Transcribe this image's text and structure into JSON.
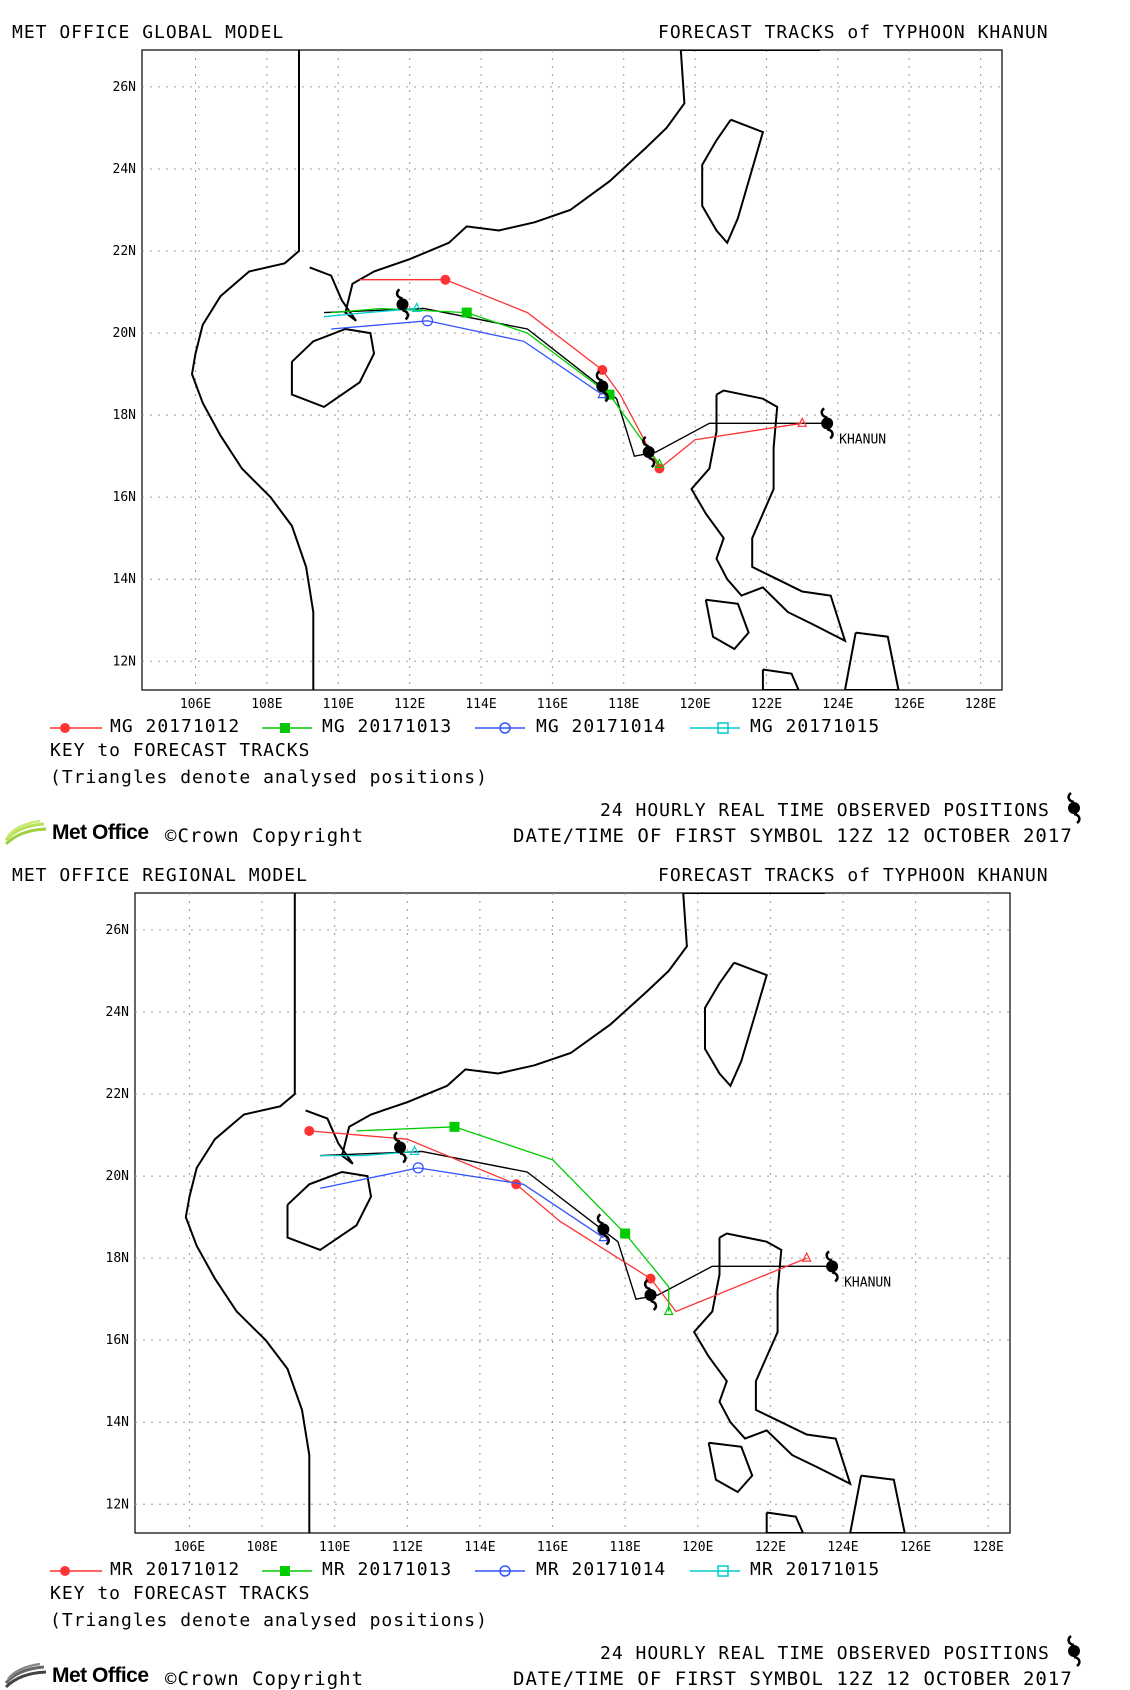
{
  "panels": [
    {
      "model_title": "MET OFFICE GLOBAL MODEL",
      "forecast_title": "FORECAST TRACKS of TYPHOON KHANUN",
      "storm_label": "KHANUN",
      "legend": [
        {
          "label": "MG 20171012",
          "color": "#ff3333",
          "marker": "filled-circle"
        },
        {
          "label": "MG 20171013",
          "color": "#00cc00",
          "marker": "filled-square"
        },
        {
          "label": "MG 20171014",
          "color": "#3355ff",
          "marker": "open-circle"
        },
        {
          "label": "MG 20171015",
          "color": "#00cccc",
          "marker": "open-square"
        }
      ],
      "key_title": "KEY to FORECAST TRACKS",
      "key_note": "(Triangles denote analysed positions)",
      "observed_label": "24 HOURLY REAL TIME OBSERVED POSITIONS",
      "first_symbol_label": "DATE/TIME OF FIRST SYMBOL 12Z 12 OCTOBER 2017",
      "logo_text": "Met Office",
      "copyright": "©Crown Copyright"
    },
    {
      "model_title": "MET OFFICE REGIONAL MODEL",
      "forecast_title": "FORECAST TRACKS of TYPHOON KHANUN",
      "storm_label": "KHANUN",
      "legend": [
        {
          "label": "MR 20171012",
          "color": "#ff3333",
          "marker": "filled-circle"
        },
        {
          "label": "MR 20171013",
          "color": "#00cc00",
          "marker": "filled-square"
        },
        {
          "label": "MR 20171014",
          "color": "#3355ff",
          "marker": "open-circle"
        },
        {
          "label": "MR 20171015",
          "color": "#00cccc",
          "marker": "open-square"
        }
      ],
      "key_title": "KEY to FORECAST TRACKS",
      "key_note": "(Triangles denote analysed positions)",
      "observed_label": "24 HOURLY REAL TIME OBSERVED POSITIONS",
      "first_symbol_label": "DATE/TIME OF FIRST SYMBOL 12Z 12 OCTOBER 2017",
      "logo_text": "Met Office",
      "copyright": "©Crown Copyright"
    }
  ],
  "map_axes": {
    "lon_ticks": [
      "106E",
      "108E",
      "110E",
      "112E",
      "114E",
      "116E",
      "118E",
      "120E",
      "122E",
      "124E",
      "126E",
      "128E"
    ],
    "lat_ticks": [
      "26N",
      "24N",
      "22N",
      "20N",
      "18N",
      "16N",
      "14N",
      "12N"
    ],
    "lon_range": [
      104.5,
      128.6
    ],
    "lat_range": [
      11.3,
      26.9
    ],
    "grid": "dotted"
  },
  "tracks": {
    "global": {
      "observed": [
        [
          123.7,
          17.8
        ],
        [
          118.7,
          17.1
        ],
        [
          117.4,
          18.7
        ],
        [
          111.8,
          20.7
        ]
      ],
      "best_track": [
        [
          123.7,
          17.8
        ],
        [
          120.4,
          17.8
        ],
        [
          118.9,
          17.1
        ],
        [
          118.3,
          17.0
        ],
        [
          117.8,
          18.4
        ],
        [
          115.3,
          20.1
        ],
        [
          112.4,
          20.6
        ],
        [
          109.6,
          20.5
        ]
      ],
      "forecasts": [
        {
          "name": "MG 20171012",
          "color": "#ff3333",
          "points": [
            [
              123.0,
              17.8
            ],
            [
              120.0,
              17.4
            ],
            [
              119.0,
              16.7
            ],
            [
              117.9,
              18.5
            ],
            [
              117.4,
              19.1
            ],
            [
              115.3,
              20.5
            ],
            [
              113.0,
              21.3
            ],
            [
              110.6,
              21.3
            ]
          ],
          "markers": [
            [
              119.0,
              16.7
            ],
            [
              117.4,
              19.1
            ],
            [
              113.0,
              21.3
            ]
          ]
        },
        {
          "name": "MG 20171013",
          "color": "#00cc00",
          "points": [
            [
              119.0,
              16.8
            ],
            [
              117.6,
              18.5
            ],
            [
              115.3,
              20.0
            ],
            [
              113.6,
              20.5
            ],
            [
              111.2,
              20.6
            ],
            [
              109.8,
              20.5
            ]
          ],
          "markers": [
            [
              117.6,
              18.5
            ],
            [
              113.6,
              20.5
            ]
          ]
        },
        {
          "name": "MG 20171014",
          "color": "#3355ff",
          "points": [
            [
              117.4,
              18.5
            ],
            [
              115.2,
              19.8
            ],
            [
              112.5,
              20.3
            ],
            [
              109.8,
              20.1
            ]
          ],
          "markers": [
            [
              112.5,
              20.3
            ]
          ]
        },
        {
          "name": "MG 20171015",
          "color": "#00cccc",
          "points": [
            [
              112.2,
              20.6
            ],
            [
              110.8,
              20.5
            ],
            [
              109.6,
              20.4
            ]
          ],
          "markers": []
        }
      ]
    },
    "regional": {
      "observed": [
        [
          123.7,
          17.8
        ],
        [
          118.7,
          17.1
        ],
        [
          117.4,
          18.7
        ],
        [
          111.8,
          20.7
        ]
      ],
      "best_track": [
        [
          123.7,
          17.8
        ],
        [
          120.4,
          17.8
        ],
        [
          118.9,
          17.1
        ],
        [
          118.3,
          17.0
        ],
        [
          117.8,
          18.4
        ],
        [
          115.3,
          20.1
        ],
        [
          112.4,
          20.6
        ],
        [
          109.6,
          20.5
        ]
      ],
      "forecasts": [
        {
          "name": "MR 20171012",
          "color": "#ff3333",
          "points": [
            [
              123.0,
              18.0
            ],
            [
              119.4,
              16.7
            ],
            [
              118.7,
              17.5
            ],
            [
              116.2,
              18.9
            ],
            [
              115.0,
              19.8
            ],
            [
              112.0,
              20.9
            ],
            [
              109.3,
              21.1
            ]
          ],
          "markers": [
            [
              118.7,
              17.5
            ],
            [
              115.0,
              19.8
            ],
            [
              109.3,
              21.1
            ]
          ]
        },
        {
          "name": "MR 20171013",
          "color": "#00cc00",
          "points": [
            [
              119.2,
              16.7
            ],
            [
              119.2,
              17.3
            ],
            [
              118.0,
              18.6
            ],
            [
              116.0,
              20.4
            ],
            [
              113.3,
              21.2
            ],
            [
              110.6,
              21.1
            ]
          ],
          "markers": [
            [
              118.0,
              18.6
            ],
            [
              113.3,
              21.2
            ]
          ]
        },
        {
          "name": "MR 20171014",
          "color": "#3355ff",
          "points": [
            [
              117.4,
              18.5
            ],
            [
              115.2,
              19.8
            ],
            [
              112.3,
              20.2
            ],
            [
              109.6,
              19.7
            ]
          ],
          "markers": [
            [
              112.3,
              20.2
            ]
          ]
        },
        {
          "name": "MR 20171015",
          "color": "#00cccc",
          "points": [
            [
              112.2,
              20.6
            ],
            [
              110.8,
              20.5
            ],
            [
              109.6,
              20.5
            ]
          ],
          "markers": []
        }
      ]
    }
  }
}
